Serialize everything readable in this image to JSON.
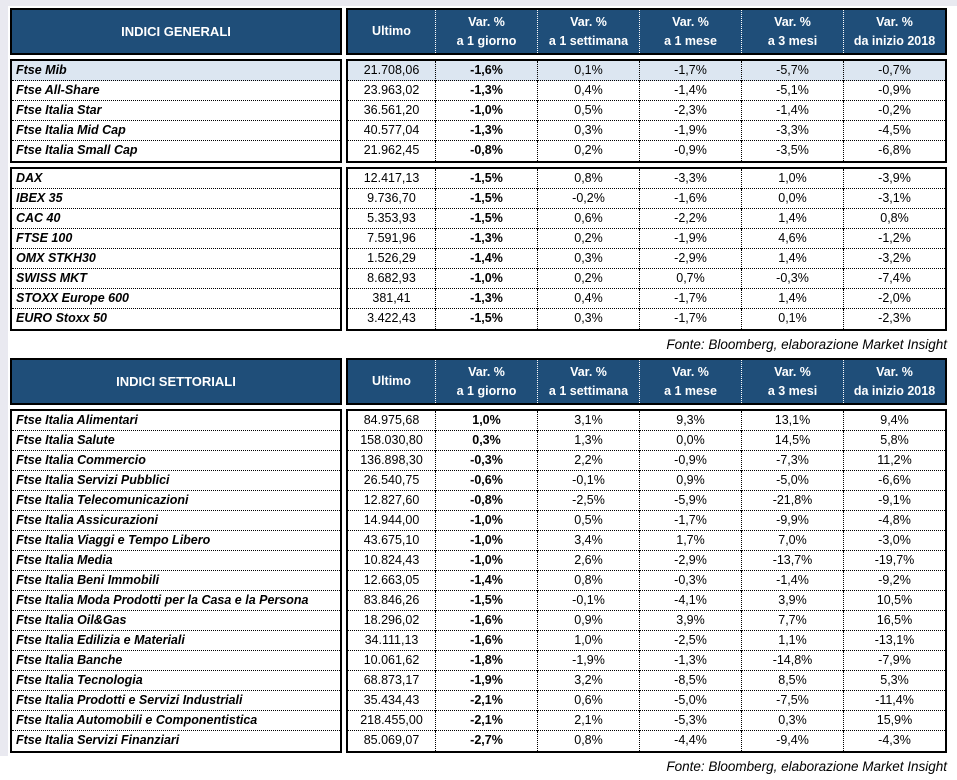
{
  "colors": {
    "header_bg": "#1F4E79",
    "highlight_row": "#DCE6F1",
    "border": "#000000",
    "page_edge": "#E9E9F0"
  },
  "source_note": "Fonte: Bloomberg, elaborazione Market Insight",
  "columns": {
    "ultimo_label": "Ultimo",
    "var_headers": [
      {
        "line1": "Var. %",
        "line2": "a 1 giorno"
      },
      {
        "line1": "Var. %",
        "line2": "a 1 settimana"
      },
      {
        "line1": "Var. %",
        "line2": "a 1 mese"
      },
      {
        "line1": "Var. %",
        "line2": "a 3 mesi"
      },
      {
        "line1": "Var. %",
        "line2": "da inizio 2018"
      }
    ]
  },
  "tables": [
    {
      "title": "INDICI GENERALI",
      "blocks": [
        {
          "rows": [
            {
              "name": "Ftse Mib",
              "ultimo": "21.708,06",
              "vars": [
                "-1,6%",
                "0,1%",
                "-1,7%",
                "-5,7%",
                "-0,7%"
              ],
              "highlight": true
            },
            {
              "name": "Ftse All-Share",
              "ultimo": "23.963,02",
              "vars": [
                "-1,3%",
                "0,4%",
                "-1,4%",
                "-5,1%",
                "-0,9%"
              ],
              "highlight": false
            },
            {
              "name": "Ftse Italia Star",
              "ultimo": "36.561,20",
              "vars": [
                "-1,0%",
                "0,5%",
                "-2,3%",
                "-1,4%",
                "-0,2%"
              ],
              "highlight": false
            },
            {
              "name": "Ftse Italia Mid Cap",
              "ultimo": "40.577,04",
              "vars": [
                "-1,3%",
                "0,3%",
                "-1,9%",
                "-3,3%",
                "-4,5%"
              ],
              "highlight": false
            },
            {
              "name": "Ftse Italia Small Cap",
              "ultimo": "21.962,45",
              "vars": [
                "-0,8%",
                "0,2%",
                "-0,9%",
                "-3,5%",
                "-6,8%"
              ],
              "highlight": false
            }
          ]
        },
        {
          "rows": [
            {
              "name": "DAX",
              "ultimo": "12.417,13",
              "vars": [
                "-1,5%",
                "0,8%",
                "-3,3%",
                "1,0%",
                "-3,9%"
              ],
              "highlight": false
            },
            {
              "name": "IBEX 35",
              "ultimo": "9.736,70",
              "vars": [
                "-1,5%",
                "-0,2%",
                "-1,6%",
                "0,0%",
                "-3,1%"
              ],
              "highlight": false
            },
            {
              "name": "CAC 40",
              "ultimo": "5.353,93",
              "vars": [
                "-1,5%",
                "0,6%",
                "-2,2%",
                "1,4%",
                "0,8%"
              ],
              "highlight": false
            },
            {
              "name": "FTSE 100",
              "ultimo": "7.591,96",
              "vars": [
                "-1,3%",
                "0,2%",
                "-1,9%",
                "4,6%",
                "-1,2%"
              ],
              "highlight": false
            },
            {
              "name": "OMX STKH30",
              "ultimo": "1.526,29",
              "vars": [
                "-1,4%",
                "0,3%",
                "-2,9%",
                "1,4%",
                "-3,2%"
              ],
              "highlight": false
            },
            {
              "name": "SWISS MKT",
              "ultimo": "8.682,93",
              "vars": [
                "-1,0%",
                "0,2%",
                "0,7%",
                "-0,3%",
                "-7,4%"
              ],
              "highlight": false
            },
            {
              "name": "STOXX Europe 600",
              "ultimo": "381,41",
              "vars": [
                "-1,3%",
                "0,4%",
                "-1,7%",
                "1,4%",
                "-2,0%"
              ],
              "highlight": false
            },
            {
              "name": "EURO Stoxx 50",
              "ultimo": "3.422,43",
              "vars": [
                "-1,5%",
                "0,3%",
                "-1,7%",
                "0,1%",
                "-2,3%"
              ],
              "highlight": false
            }
          ]
        }
      ]
    },
    {
      "title": "INDICI SETTORIALI",
      "blocks": [
        {
          "rows": [
            {
              "name": "Ftse Italia Alimentari",
              "ultimo": "84.975,68",
              "vars": [
                "1,0%",
                "3,1%",
                "9,3%",
                "13,1%",
                "9,4%"
              ],
              "highlight": false
            },
            {
              "name": "Ftse Italia Salute",
              "ultimo": "158.030,80",
              "vars": [
                "0,3%",
                "1,3%",
                "0,0%",
                "14,5%",
                "5,8%"
              ],
              "highlight": false
            },
            {
              "name": "Ftse Italia Commercio",
              "ultimo": "136.898,30",
              "vars": [
                "-0,3%",
                "2,2%",
                "-0,9%",
                "-7,3%",
                "11,2%"
              ],
              "highlight": false
            },
            {
              "name": "Ftse Italia Servizi Pubblici",
              "ultimo": "26.540,75",
              "vars": [
                "-0,6%",
                "-0,1%",
                "0,9%",
                "-5,0%",
                "-6,6%"
              ],
              "highlight": false
            },
            {
              "name": "Ftse Italia Telecomunicazioni",
              "ultimo": "12.827,60",
              "vars": [
                "-0,8%",
                "-2,5%",
                "-5,9%",
                "-21,8%",
                "-9,1%"
              ],
              "highlight": false
            },
            {
              "name": "Ftse Italia Assicurazioni",
              "ultimo": "14.944,00",
              "vars": [
                "-1,0%",
                "0,5%",
                "-1,7%",
                "-9,9%",
                "-4,8%"
              ],
              "highlight": false
            },
            {
              "name": "Ftse Italia Viaggi e Tempo Libero",
              "ultimo": "43.675,10",
              "vars": [
                "-1,0%",
                "3,4%",
                "1,7%",
                "7,0%",
                "-3,0%"
              ],
              "highlight": false
            },
            {
              "name": "Ftse Italia Media",
              "ultimo": "10.824,43",
              "vars": [
                "-1,0%",
                "2,6%",
                "-2,9%",
                "-13,7%",
                "-19,7%"
              ],
              "highlight": false
            },
            {
              "name": "Ftse Italia Beni Immobili",
              "ultimo": "12.663,05",
              "vars": [
                "-1,4%",
                "0,8%",
                "-0,3%",
                "-1,4%",
                "-9,2%"
              ],
              "highlight": false
            },
            {
              "name": "Ftse Italia Moda Prodotti per la Casa e la Persona",
              "ultimo": "83.846,26",
              "vars": [
                "-1,5%",
                "-0,1%",
                "-4,1%",
                "3,9%",
                "10,5%"
              ],
              "highlight": false
            },
            {
              "name": "Ftse Italia Oil&Gas",
              "ultimo": "18.296,02",
              "vars": [
                "-1,6%",
                "0,9%",
                "3,9%",
                "7,7%",
                "16,5%"
              ],
              "highlight": false
            },
            {
              "name": "Ftse Italia Edilizia e Materiali",
              "ultimo": "34.111,13",
              "vars": [
                "-1,6%",
                "1,0%",
                "-2,5%",
                "1,1%",
                "-13,1%"
              ],
              "highlight": false
            },
            {
              "name": "Ftse Italia Banche",
              "ultimo": "10.061,62",
              "vars": [
                "-1,8%",
                "-1,9%",
                "-1,3%",
                "-14,8%",
                "-7,9%"
              ],
              "highlight": false
            },
            {
              "name": "Ftse Italia Tecnologia",
              "ultimo": "68.873,17",
              "vars": [
                "-1,9%",
                "3,2%",
                "-8,5%",
                "8,5%",
                "5,3%"
              ],
              "highlight": false
            },
            {
              "name": "Ftse Italia Prodotti e Servizi Industriali",
              "ultimo": "35.434,43",
              "vars": [
                "-2,1%",
                "0,6%",
                "-5,0%",
                "-7,5%",
                "-11,4%"
              ],
              "highlight": false
            },
            {
              "name": "Ftse Italia Automobili e Componentistica",
              "ultimo": "218.455,00",
              "vars": [
                "-2,1%",
                "2,1%",
                "-5,3%",
                "0,3%",
                "15,9%"
              ],
              "highlight": false
            },
            {
              "name": "Ftse Italia Servizi Finanziari",
              "ultimo": "85.069,07",
              "vars": [
                "-2,7%",
                "0,8%",
                "-4,4%",
                "-9,4%",
                "-4,3%"
              ],
              "highlight": false
            }
          ]
        }
      ]
    }
  ]
}
